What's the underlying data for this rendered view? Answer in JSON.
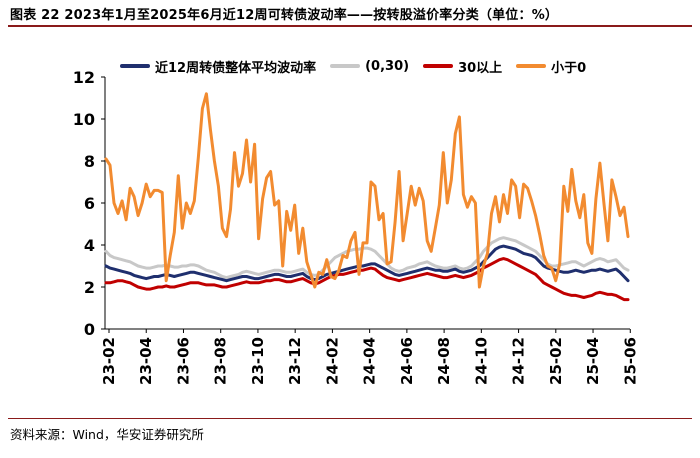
{
  "title": "图表 22  2023年1月至2025年6月近12周可转债波动率——按转股溢价率分类（单位：%）",
  "source": "资料来源：Wind，华安证券研究所",
  "chart_data": {
    "type": "line",
    "ylim": [
      0,
      12
    ],
    "yticks": [
      "0",
      "2",
      "4",
      "6",
      "8",
      "10",
      "12"
    ],
    "xticks": [
      "23-02",
      "23-04",
      "23-06",
      "23-08",
      "23-10",
      "23-12",
      "24-02",
      "24-04",
      "24-06",
      "24-08",
      "24-10",
      "24-12",
      "25-02",
      "25-04",
      "25-06"
    ],
    "grid": false,
    "legend_position": "top",
    "series": [
      {
        "name": "近12周转债整体平均波动率",
        "color": "#1f2f6e",
        "values": [
          3.0,
          2.9,
          2.85,
          2.8,
          2.75,
          2.7,
          2.65,
          2.55,
          2.5,
          2.45,
          2.4,
          2.45,
          2.5,
          2.5,
          2.55,
          2.6,
          2.55,
          2.5,
          2.55,
          2.6,
          2.65,
          2.7,
          2.7,
          2.65,
          2.6,
          2.55,
          2.5,
          2.45,
          2.4,
          2.35,
          2.3,
          2.35,
          2.4,
          2.45,
          2.5,
          2.5,
          2.45,
          2.4,
          2.4,
          2.45,
          2.5,
          2.55,
          2.6,
          2.6,
          2.55,
          2.5,
          2.5,
          2.55,
          2.6,
          2.65,
          2.5,
          2.4,
          2.35,
          2.4,
          2.5,
          2.6,
          2.65,
          2.7,
          2.75,
          2.8,
          2.85,
          2.9,
          2.95,
          3.0,
          3.0,
          3.05,
          3.1,
          3.1,
          3.0,
          2.9,
          2.8,
          2.7,
          2.6,
          2.55,
          2.6,
          2.65,
          2.7,
          2.75,
          2.8,
          2.85,
          2.9,
          2.85,
          2.8,
          2.8,
          2.75,
          2.75,
          2.8,
          2.85,
          2.75,
          2.7,
          2.75,
          2.8,
          2.9,
          3.0,
          3.2,
          3.4,
          3.6,
          3.8,
          3.9,
          3.95,
          3.9,
          3.85,
          3.8,
          3.7,
          3.6,
          3.55,
          3.5,
          3.4,
          3.2,
          3.0,
          2.9,
          2.85,
          2.8,
          2.75,
          2.7,
          2.7,
          2.75,
          2.8,
          2.75,
          2.7,
          2.75,
          2.8,
          2.8,
          2.85,
          2.8,
          2.75,
          2.8,
          2.85,
          2.7,
          2.5,
          2.3
        ]
      },
      {
        "name": "(0,30)",
        "color": "#c8c8c8",
        "values": [
          3.7,
          3.5,
          3.4,
          3.35,
          3.3,
          3.25,
          3.2,
          3.1,
          3.0,
          2.95,
          2.9,
          2.9,
          2.95,
          3.0,
          3.0,
          3.05,
          3.0,
          2.95,
          2.95,
          3.0,
          3.0,
          3.05,
          3.05,
          3.0,
          2.9,
          2.8,
          2.75,
          2.7,
          2.6,
          2.5,
          2.45,
          2.5,
          2.55,
          2.6,
          2.7,
          2.75,
          2.7,
          2.65,
          2.6,
          2.65,
          2.7,
          2.75,
          2.8,
          2.8,
          2.75,
          2.7,
          2.7,
          2.75,
          2.8,
          2.85,
          2.7,
          2.6,
          2.55,
          2.6,
          2.8,
          3.0,
          3.2,
          3.4,
          3.5,
          3.6,
          3.7,
          3.75,
          3.8,
          3.8,
          3.85,
          3.85,
          3.8,
          3.7,
          3.5,
          3.3,
          3.1,
          2.9,
          2.8,
          2.75,
          2.8,
          2.9,
          2.95,
          3.0,
          3.1,
          3.15,
          3.2,
          3.1,
          3.0,
          2.95,
          2.9,
          2.9,
          2.95,
          3.0,
          2.9,
          2.85,
          2.9,
          3.0,
          3.2,
          3.4,
          3.7,
          3.9,
          4.1,
          4.2,
          4.3,
          4.35,
          4.3,
          4.25,
          4.2,
          4.1,
          4.0,
          3.9,
          3.8,
          3.7,
          3.5,
          3.3,
          3.1,
          3.0,
          3.0,
          3.05,
          3.1,
          3.15,
          3.2,
          3.2,
          3.1,
          3.0,
          3.1,
          3.2,
          3.3,
          3.35,
          3.3,
          3.2,
          3.25,
          3.3,
          3.1,
          2.9,
          2.8
        ]
      },
      {
        "name": "30以上",
        "color": "#c00000",
        "values": [
          2.2,
          2.2,
          2.25,
          2.3,
          2.3,
          2.25,
          2.2,
          2.1,
          2.0,
          1.95,
          1.9,
          1.9,
          1.95,
          2.0,
          2.0,
          2.05,
          2.0,
          2.0,
          2.05,
          2.1,
          2.15,
          2.2,
          2.2,
          2.2,
          2.15,
          2.1,
          2.1,
          2.1,
          2.05,
          2.0,
          2.0,
          2.05,
          2.1,
          2.15,
          2.2,
          2.25,
          2.2,
          2.2,
          2.2,
          2.25,
          2.3,
          2.3,
          2.35,
          2.35,
          2.3,
          2.25,
          2.25,
          2.3,
          2.35,
          2.4,
          2.3,
          2.2,
          2.15,
          2.2,
          2.3,
          2.4,
          2.5,
          2.55,
          2.6,
          2.6,
          2.65,
          2.7,
          2.75,
          2.8,
          2.8,
          2.85,
          2.9,
          2.85,
          2.7,
          2.55,
          2.45,
          2.4,
          2.35,
          2.3,
          2.35,
          2.4,
          2.45,
          2.5,
          2.55,
          2.6,
          2.65,
          2.6,
          2.55,
          2.5,
          2.45,
          2.45,
          2.5,
          2.55,
          2.5,
          2.45,
          2.5,
          2.55,
          2.65,
          2.75,
          2.9,
          3.0,
          3.1,
          3.2,
          3.3,
          3.35,
          3.3,
          3.2,
          3.1,
          3.0,
          2.9,
          2.8,
          2.7,
          2.6,
          2.4,
          2.2,
          2.1,
          2.0,
          1.9,
          1.8,
          1.7,
          1.65,
          1.6,
          1.6,
          1.55,
          1.5,
          1.55,
          1.6,
          1.7,
          1.75,
          1.7,
          1.65,
          1.65,
          1.6,
          1.5,
          1.4,
          1.4
        ]
      },
      {
        "name": "小于0",
        "color": "#f28b30",
        "values": [
          8.1,
          7.8,
          6.0,
          5.5,
          6.1,
          5.2,
          6.7,
          6.3,
          5.4,
          6.0,
          6.9,
          6.3,
          6.6,
          6.6,
          6.5,
          2.3,
          3.5,
          4.6,
          7.3,
          4.8,
          6.0,
          5.5,
          6.1,
          8.2,
          10.5,
          11.2,
          9.5,
          8.0,
          6.8,
          4.8,
          4.4,
          5.7,
          8.4,
          6.8,
          7.4,
          9.0,
          7.0,
          8.8,
          4.3,
          6.2,
          7.2,
          7.5,
          5.9,
          6.1,
          3.0,
          5.6,
          4.7,
          5.9,
          3.6,
          4.8,
          3.2,
          2.6,
          2.0,
          2.7,
          2.6,
          3.3,
          2.5,
          2.4,
          2.8,
          3.5,
          3.4,
          4.2,
          4.6,
          2.6,
          4.1,
          4.1,
          7.0,
          6.8,
          5.2,
          5.5,
          3.1,
          3.2,
          5.1,
          7.5,
          4.2,
          5.5,
          6.8,
          5.9,
          6.7,
          6.1,
          4.2,
          3.7,
          4.8,
          5.9,
          8.4,
          6.0,
          7.1,
          9.3,
          10.1,
          6.4,
          5.8,
          6.3,
          6.0,
          2.0,
          3.0,
          3.6,
          5.5,
          6.3,
          5.1,
          6.4,
          5.5,
          7.1,
          6.8,
          5.3,
          6.9,
          6.7,
          6.1,
          5.4,
          4.5,
          3.5,
          3.0,
          2.9,
          2.3,
          3.1,
          6.8,
          5.6,
          7.6,
          6.1,
          5.3,
          6.4,
          4.1,
          3.6,
          6.2,
          7.9,
          6.0,
          4.2,
          7.1,
          6.3,
          5.4,
          5.8,
          4.4
        ]
      }
    ]
  }
}
